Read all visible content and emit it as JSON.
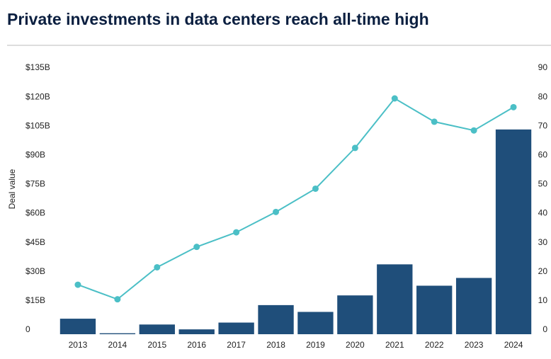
{
  "chart_data": {
    "type": "bar",
    "title": "Private investments in data centers reach all-time high",
    "y_label": "Deal value",
    "categories": [
      "2013",
      "2014",
      "2015",
      "2016",
      "2017",
      "2018",
      "2019",
      "2020",
      "2021",
      "2022",
      "2023",
      "2024"
    ],
    "series": [
      {
        "type": "bar",
        "color": "#1f4e7a",
        "values": [
          8,
          0.5,
          5,
          2.5,
          6,
          15,
          11.5,
          20,
          36,
          25,
          29,
          105.5
        ]
      },
      {
        "type": "line",
        "axis": "y2",
        "color": "#4bbfc6",
        "values": [
          17,
          12,
          23,
          30,
          35,
          42,
          50,
          64,
          81,
          73,
          70,
          78
        ]
      }
    ],
    "ylim": [
      0,
      135
    ],
    "yticks": [
      {
        "value": 0,
        "label": "0"
      },
      {
        "value": 15,
        "label": "$15B"
      },
      {
        "value": 30,
        "label": "$30B"
      },
      {
        "value": 45,
        "label": "$45B"
      },
      {
        "value": 60,
        "label": "$60B"
      },
      {
        "value": 75,
        "label": "$75B"
      },
      {
        "value": 90,
        "label": "$90B"
      },
      {
        "value": 105,
        "label": "$105B"
      },
      {
        "value": 120,
        "label": "$120B"
      },
      {
        "value": 135,
        "label": "$135B"
      }
    ],
    "y2lim": [
      0,
      90
    ],
    "y2ticks": [
      0,
      10,
      20,
      30,
      40,
      50,
      60,
      70,
      80,
      90
    ]
  }
}
